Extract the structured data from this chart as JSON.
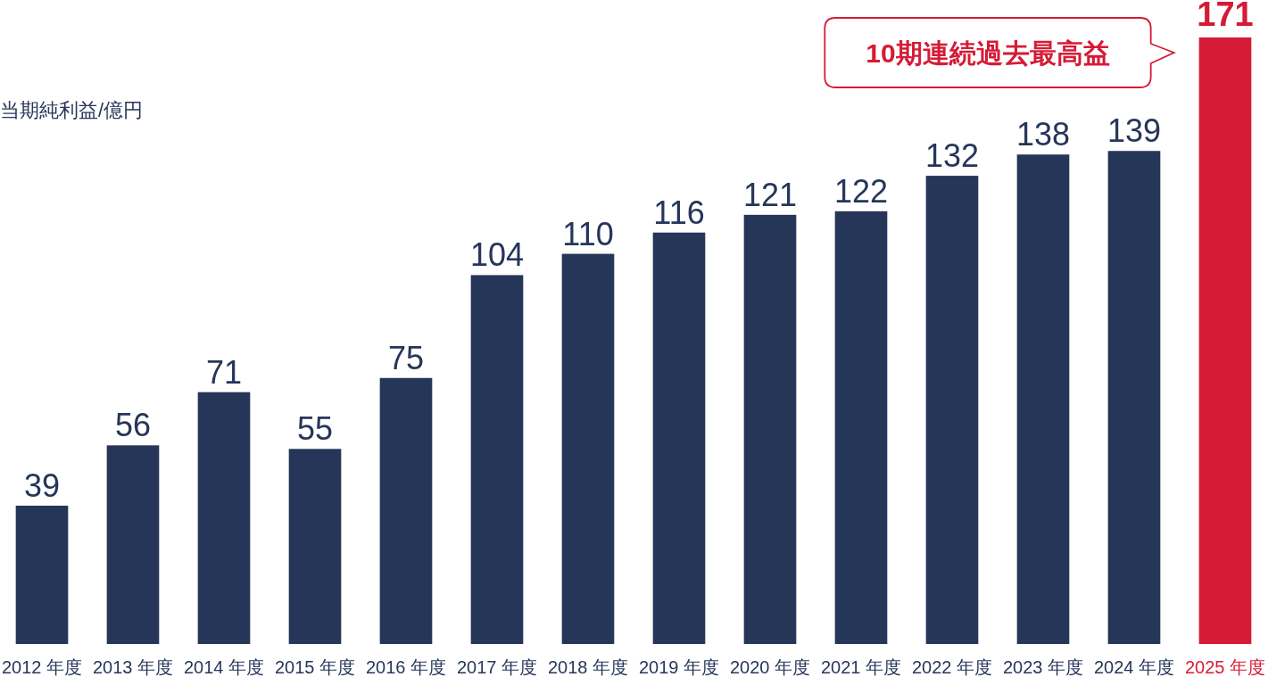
{
  "chart_data": {
    "type": "bar",
    "ylabel": "当期純利益/億円",
    "categories": [
      "2012 年度",
      "2013 年度",
      "2014 年度",
      "2015 年度",
      "2016 年度",
      "2017 年度",
      "2018 年度",
      "2019 年度",
      "2020 年度",
      "2021 年度",
      "2022 年度",
      "2023 年度",
      "2024 年度",
      "2025 年度"
    ],
    "values": [
      39,
      56,
      71,
      55,
      75,
      104,
      110,
      116,
      121,
      122,
      132,
      138,
      139,
      171
    ],
    "colors": [
      "#263659",
      "#263659",
      "#263659",
      "#263659",
      "#263659",
      "#263659",
      "#263659",
      "#263659",
      "#263659",
      "#263659",
      "#263659",
      "#263659",
      "#263659",
      "#d51b36"
    ],
    "data_labels": true,
    "annotations": [
      "10期連続過去最高益"
    ]
  }
}
